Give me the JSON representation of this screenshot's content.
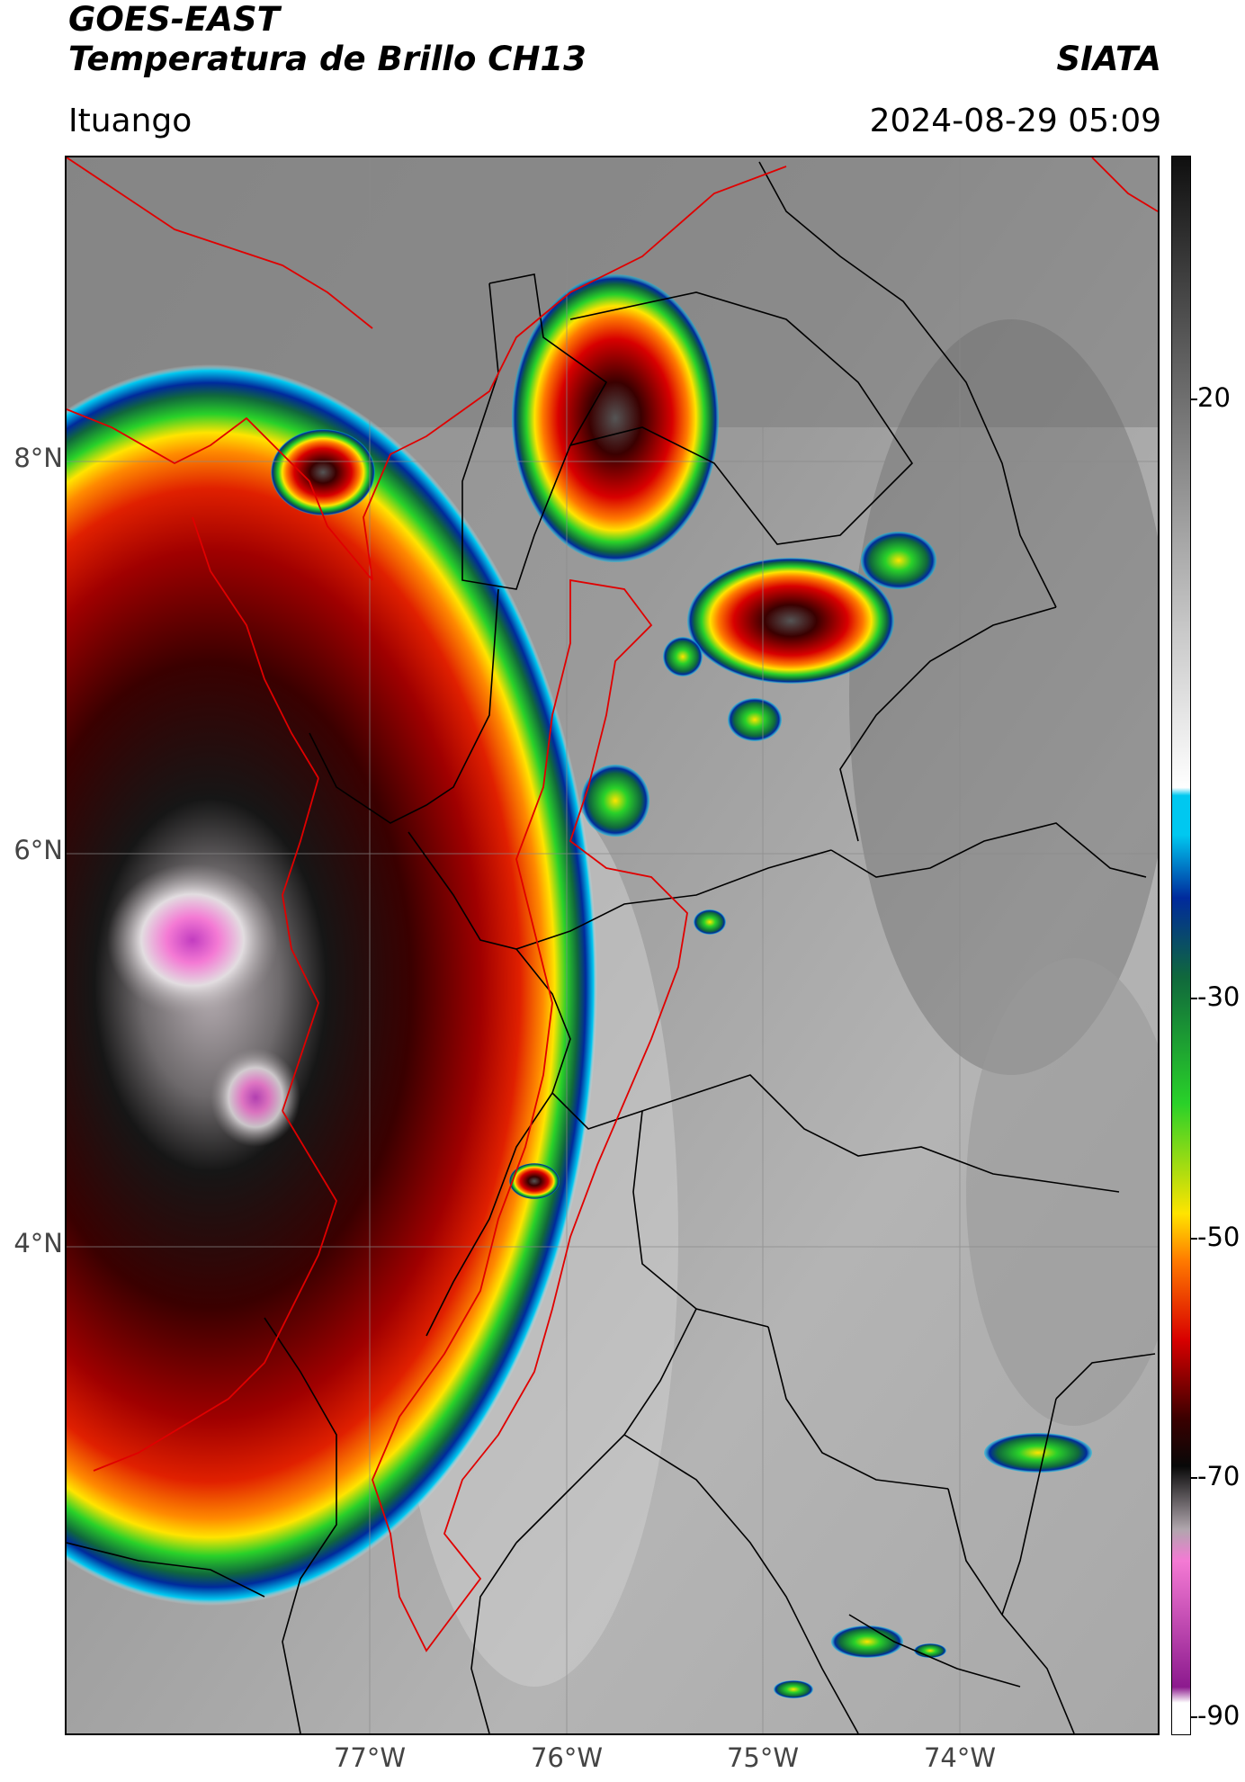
{
  "header": {
    "satellite": "GOES-EAST",
    "product": "Temperatura de Brillo CH13",
    "agency": "SIATA",
    "location": "Ituango",
    "datetime": "2024-08-29 05:09"
  },
  "map": {
    "latitude_labels": [
      {
        "label": "8°N",
        "value": 8
      },
      {
        "label": "6°N",
        "value": 6
      },
      {
        "label": "4°N",
        "value": 4
      }
    ],
    "longitude_labels": [
      {
        "label": "77°W",
        "value": -77
      },
      {
        "label": "76°W",
        "value": -76
      },
      {
        "label": "75°W",
        "value": -75
      },
      {
        "label": "74°W",
        "value": -74
      }
    ],
    "gridlines": true,
    "basemap_layers": [
      "brightness-temperature-raster",
      "departments-borders-black",
      "coastline-red",
      "watershed-red"
    ]
  },
  "colorbar": {
    "unit_hint": "°C",
    "min": -90,
    "max": 40,
    "ticks": [
      {
        "label": "20",
        "value": 20
      },
      {
        "label": "-30",
        "value": -30
      },
      {
        "label": "-50",
        "value": -50
      },
      {
        "label": "-70",
        "value": -70
      },
      {
        "label": "-90",
        "value": -90
      }
    ],
    "colors": {
      "warm_top": "#0f0f0f",
      "warm_mid": "#8c8c8c",
      "cool_light": "#ffffff",
      "cyan": "#00c8f0",
      "blue": "#002a9c",
      "dark_green": "#10683c",
      "green": "#29d129",
      "yellow": "#ffe400",
      "orange": "#ff7a00",
      "red": "#d80000",
      "dark_red": "#3a0000",
      "black": "#080808",
      "gray_cold": "#b0a6ad",
      "pink": "#f47ad4",
      "purple": "#8c1a8e"
    }
  }
}
